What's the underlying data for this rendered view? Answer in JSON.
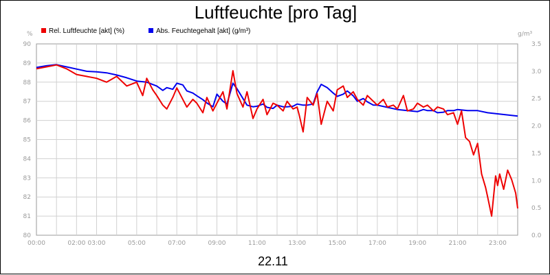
{
  "chart_data": {
    "type": "line",
    "title": "Luftfeuchte [pro Tag]",
    "date_label": "22.11",
    "left_axis": {
      "unit": "%",
      "ylim": [
        80,
        90
      ],
      "ticks": [
        "80",
        "81",
        "82",
        "83",
        "84",
        "85",
        "86",
        "87",
        "88",
        "89",
        "90"
      ]
    },
    "right_axis": {
      "unit": "g/m³",
      "ylim": [
        0,
        3.5
      ],
      "ticks": [
        "0.0",
        "0.5",
        "1.0",
        "1.5",
        "2.0",
        "2.5",
        "3.0",
        "3.5"
      ]
    },
    "x_axis": {
      "range_hours": [
        0,
        24
      ],
      "ticks": [
        {
          "h": 0,
          "label": "00:00"
        },
        {
          "h": 2,
          "label": "02:00"
        },
        {
          "h": 3,
          "label": "03:00"
        },
        {
          "h": 5,
          "label": "05:00"
        },
        {
          "h": 7,
          "label": "07:00"
        },
        {
          "h": 9,
          "label": "09:00"
        },
        {
          "h": 11,
          "label": "11:00"
        },
        {
          "h": 13,
          "label": "13:00"
        },
        {
          "h": 15,
          "label": "15:00"
        },
        {
          "h": 17,
          "label": "17:00"
        },
        {
          "h": 19,
          "label": "19:00"
        },
        {
          "h": 21,
          "label": "21:00"
        },
        {
          "h": 23,
          "label": "23:00"
        }
      ]
    },
    "grid": true,
    "legend_position": "top-left",
    "series": [
      {
        "name": "Rel. Luftfeuchte [akt] (%)",
        "axis": "left",
        "color": "#ee0000",
        "x": [
          0,
          0.5,
          1,
          1.5,
          2,
          2.5,
          3,
          3.5,
          4,
          4.5,
          5,
          5.3,
          5.5,
          5.8,
          6,
          6.3,
          6.5,
          6.8,
          7,
          7.3,
          7.5,
          7.8,
          8,
          8.3,
          8.5,
          8.8,
          9,
          9.3,
          9.5,
          9.8,
          10,
          10.3,
          10.5,
          10.8,
          11,
          11.3,
          11.5,
          11.8,
          12,
          12.3,
          12.5,
          12.8,
          13,
          13.1,
          13.3,
          13.5,
          13.8,
          14,
          14.2,
          14.5,
          14.8,
          15,
          15.3,
          15.5,
          15.8,
          16,
          16.3,
          16.5,
          16.8,
          17,
          17.3,
          17.5,
          17.8,
          18,
          18.3,
          18.5,
          18.8,
          19,
          19.3,
          19.5,
          19.8,
          20,
          20.3,
          20.5,
          20.8,
          21,
          21.2,
          21.4,
          21.6,
          21.8,
          22,
          22.2,
          22.4,
          22.5,
          22.7,
          22.9,
          23,
          23.1,
          23.3,
          23.5,
          23.7,
          23.9,
          24
        ],
        "y": [
          88.7,
          88.8,
          88.9,
          88.7,
          88.4,
          88.3,
          88.2,
          88.0,
          88.3,
          87.8,
          88.0,
          87.3,
          88.2,
          87.6,
          87.3,
          86.8,
          86.6,
          87.2,
          87.7,
          87.1,
          86.7,
          87.1,
          86.9,
          86.4,
          87.2,
          86.5,
          86.9,
          87.5,
          86.6,
          88.6,
          87.4,
          86.7,
          87.5,
          86.1,
          86.6,
          87.1,
          86.3,
          86.9,
          86.8,
          86.5,
          87.0,
          86.6,
          86.7,
          86.3,
          85.4,
          87.2,
          86.8,
          87.4,
          85.8,
          87.0,
          86.5,
          87.6,
          87.8,
          87.2,
          87.5,
          87.1,
          86.8,
          87.3,
          87.0,
          86.8,
          87.1,
          86.7,
          86.8,
          86.6,
          87.3,
          86.5,
          86.6,
          86.9,
          86.7,
          86.8,
          86.5,
          86.7,
          86.6,
          86.3,
          86.4,
          85.8,
          86.5,
          85.1,
          84.9,
          84.2,
          84.8,
          83.2,
          82.5,
          82.0,
          81.0,
          83.1,
          82.6,
          83.2,
          82.4,
          83.4,
          82.9,
          82.2,
          81.4
        ]
      },
      {
        "name": "Abs. Feuchtegehalt [akt] (g/m³)",
        "axis": "right",
        "color": "#0000ee",
        "x": [
          0,
          0.5,
          1,
          1.5,
          2,
          2.5,
          3,
          3.5,
          4,
          4.5,
          5,
          5.5,
          6,
          6.3,
          6.5,
          6.8,
          7,
          7.3,
          7.5,
          7.8,
          8,
          8.3,
          8.5,
          8.8,
          9,
          9.3,
          9.5,
          9.8,
          10,
          10.3,
          10.5,
          10.8,
          11,
          11.3,
          11.5,
          11.8,
          12,
          12.3,
          12.5,
          12.8,
          13,
          13.3,
          13.5,
          13.8,
          14,
          14.2,
          14.5,
          14.8,
          15,
          15.3,
          15.5,
          15.8,
          16,
          16.3,
          16.5,
          16.8,
          17,
          17.5,
          18,
          18.5,
          19,
          19.3,
          19.5,
          19.8,
          20,
          20.3,
          20.5,
          20.8,
          21,
          21.5,
          22,
          22.5,
          23,
          23.5,
          24
        ],
        "y": [
          3.07,
          3.1,
          3.12,
          3.08,
          3.04,
          3.0,
          2.99,
          2.97,
          2.93,
          2.88,
          2.82,
          2.8,
          2.73,
          2.65,
          2.7,
          2.67,
          2.78,
          2.75,
          2.64,
          2.6,
          2.55,
          2.48,
          2.42,
          2.35,
          2.58,
          2.45,
          2.4,
          2.78,
          2.68,
          2.5,
          2.38,
          2.35,
          2.36,
          2.4,
          2.34,
          2.32,
          2.38,
          2.35,
          2.35,
          2.36,
          2.4,
          2.38,
          2.38,
          2.4,
          2.62,
          2.76,
          2.7,
          2.6,
          2.54,
          2.58,
          2.64,
          2.55,
          2.45,
          2.5,
          2.44,
          2.38,
          2.38,
          2.34,
          2.3,
          2.28,
          2.26,
          2.3,
          2.28,
          2.28,
          2.24,
          2.25,
          2.28,
          2.28,
          2.3,
          2.28,
          2.28,
          2.24,
          2.22,
          2.2,
          2.18
        ]
      }
    ]
  }
}
